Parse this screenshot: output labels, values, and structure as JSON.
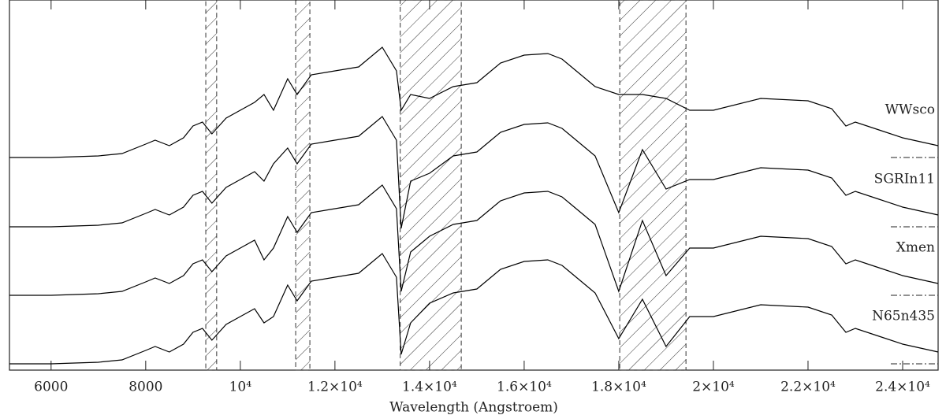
{
  "chart_data": {
    "type": "line",
    "x_label": "Wavelength (Angstroem)",
    "xlim": [
      5120,
      24750
    ],
    "ylim": [
      0,
      470
    ],
    "xticks": [
      6000,
      8000,
      {
        "value": 10000,
        "label": "10⁴"
      },
      {
        "value": 12000,
        "label": "1.2×10⁴"
      },
      {
        "value": 14000,
        "label": "1.4×10⁴"
      },
      {
        "value": 16000,
        "label": "1.6×10⁴"
      },
      {
        "value": 18000,
        "label": "1.8×10⁴"
      },
      {
        "value": 20000,
        "label": "2×10⁴"
      },
      {
        "value": 22000,
        "label": "2.2×10⁴"
      },
      {
        "value": 24000,
        "label": "2.4×10⁴"
      }
    ],
    "hatched_regions": [
      [
        9270,
        9500
      ],
      [
        11170,
        11470
      ],
      [
        13380,
        14670
      ],
      [
        18020,
        19420
      ]
    ],
    "x": [
      5120,
      6000,
      7000,
      7500,
      8000,
      8200,
      8500,
      8800,
      9000,
      9200,
      9400,
      9700,
      10000,
      10300,
      10500,
      10700,
      11000,
      11200,
      11500,
      12000,
      12500,
      13000,
      13300,
      13400,
      13600,
      14000,
      14500,
      15000,
      15500,
      16000,
      16500,
      16800,
      17000,
      17500,
      18000,
      18500,
      19000,
      19500,
      20000,
      21000,
      22000,
      22500,
      22800,
      23000,
      23500,
      24000,
      24750
    ],
    "series": [
      {
        "name": "WWsco",
        "color": "#000000",
        "baseline": 270,
        "values": [
          270,
          270,
          272,
          275,
          287,
          292,
          285,
          295,
          310,
          315,
          300,
          320,
          330,
          340,
          350,
          330,
          370,
          350,
          375,
          380,
          385,
          410,
          380,
          330,
          350,
          345,
          360,
          365,
          390,
          400,
          402,
          395,
          385,
          360,
          350,
          350,
          345,
          330,
          330,
          345,
          342,
          332,
          310,
          315,
          305,
          295,
          285
        ]
      },
      {
        "name": "SGRIn11",
        "color": "#000000",
        "baseline": 182,
        "values": [
          182,
          182,
          184,
          187,
          199,
          204,
          197,
          207,
          222,
          227,
          212,
          232,
          242,
          252,
          240,
          262,
          282,
          262,
          287,
          292,
          297,
          322,
          292,
          180,
          240,
          250,
          272,
          277,
          302,
          312,
          314,
          307,
          297,
          272,
          200,
          280,
          230,
          242,
          242,
          257,
          254,
          244,
          222,
          227,
          217,
          207,
          197
        ]
      },
      {
        "name": "Xmen",
        "color": "#000000",
        "baseline": 95,
        "values": [
          95,
          95,
          97,
          100,
          112,
          117,
          110,
          120,
          135,
          140,
          125,
          145,
          155,
          165,
          140,
          155,
          195,
          175,
          200,
          205,
          210,
          235,
          205,
          100,
          150,
          170,
          185,
          190,
          215,
          225,
          227,
          220,
          210,
          185,
          100,
          190,
          120,
          155,
          155,
          170,
          167,
          157,
          135,
          140,
          130,
          120,
          110
        ]
      },
      {
        "name": "N65n435",
        "color": "#000000",
        "baseline": 8,
        "values": [
          8,
          8,
          10,
          13,
          25,
          30,
          23,
          33,
          48,
          53,
          38,
          58,
          68,
          78,
          60,
          68,
          108,
          88,
          113,
          118,
          123,
          148,
          118,
          20,
          60,
          85,
          98,
          103,
          128,
          138,
          140,
          133,
          123,
          98,
          40,
          90,
          30,
          68,
          68,
          83,
          80,
          70,
          48,
          53,
          43,
          33,
          23
        ]
      }
    ]
  }
}
